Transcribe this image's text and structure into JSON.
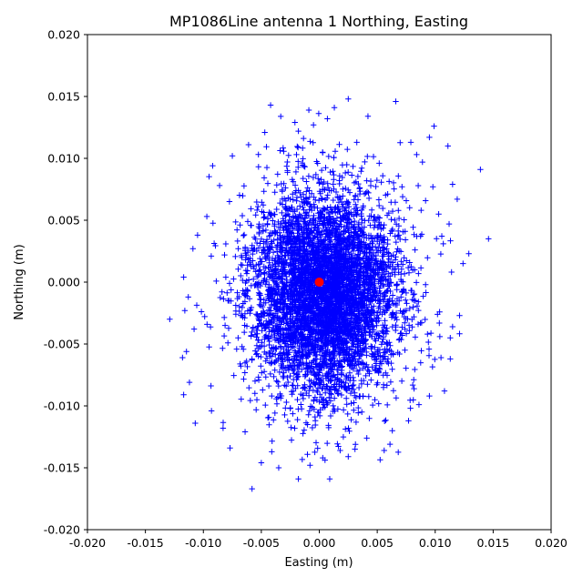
{
  "chart_data": {
    "type": "scatter",
    "title": "MP1086Line antenna 1 Northing, Easting",
    "xlabel": "Easting (m)",
    "ylabel": "Northing (m)",
    "xlim": [
      -0.02,
      0.02
    ],
    "ylim": [
      -0.02,
      0.02
    ],
    "xticks": [
      "-0.020",
      "-0.015",
      "-0.010",
      "-0.005",
      "0.000",
      "0.005",
      "0.010",
      "0.015",
      "0.020"
    ],
    "yticks": [
      "-0.020",
      "-0.015",
      "-0.010",
      "-0.005",
      "0.000",
      "0.005",
      "0.010",
      "0.015",
      "0.020"
    ],
    "grid": false,
    "series": [
      {
        "marker": "plus",
        "color": "#0000ff",
        "distribution": {
          "center": [
            0.0005,
            -0.001
          ],
          "std": [
            0.0032,
            0.0042
          ]
        },
        "points": [
          [
            0.0139,
            0.0091
          ],
          [
            0.0146,
            0.0035
          ],
          [
            0.0129,
            0.0023
          ],
          [
            0.0124,
            0.0015
          ],
          [
            0.0121,
            -0.0027
          ],
          [
            0.0111,
            0.011
          ],
          [
            0.0115,
            0.0079
          ],
          [
            0.0119,
            0.0067
          ],
          [
            0.0112,
            0.0047
          ],
          [
            0.0113,
            -0.0045
          ],
          [
            0.0108,
            -0.0088
          ],
          [
            0.0113,
            -0.0062
          ],
          [
            0.0099,
            0.0126
          ],
          [
            0.0095,
            0.0117
          ],
          [
            0.0084,
            0.0103
          ],
          [
            0.0066,
            0.0146
          ],
          [
            0.0042,
            0.0134
          ],
          [
            0.0025,
            0.0148
          ],
          [
            0.0013,
            0.0141
          ],
          [
            0.0007,
            0.0132
          ],
          [
            -0.0005,
            0.0127
          ],
          [
            -0.0009,
            0.0139
          ],
          [
            -0.0018,
            0.0122
          ],
          [
            -0.0021,
            0.0129
          ],
          [
            -0.0042,
            0.0143
          ],
          [
            -0.0047,
            0.0121
          ],
          [
            -0.0061,
            0.0111
          ],
          [
            -0.0075,
            0.0102
          ],
          [
            -0.0086,
            0.0078
          ],
          [
            -0.0092,
            0.0094
          ],
          [
            -0.0097,
            0.0053
          ],
          [
            -0.0105,
            0.0038
          ],
          [
            -0.0109,
            0.0027
          ],
          [
            -0.0117,
            0.0004
          ],
          [
            -0.0113,
            -0.0012
          ],
          [
            -0.0129,
            -0.003
          ],
          [
            -0.0116,
            -0.0023
          ],
          [
            -0.0108,
            -0.0038
          ],
          [
            -0.0118,
            -0.0061
          ],
          [
            -0.0112,
            -0.0081
          ],
          [
            -0.0117,
            -0.0091
          ],
          [
            -0.0107,
            -0.0114
          ],
          [
            -0.0093,
            -0.0104
          ],
          [
            -0.0083,
            -0.0118
          ],
          [
            -0.0077,
            -0.0134
          ],
          [
            -0.0064,
            -0.0121
          ],
          [
            -0.0058,
            -0.0167
          ],
          [
            -0.005,
            -0.0146
          ],
          [
            -0.0041,
            -0.0137
          ],
          [
            -0.0035,
            -0.015
          ],
          [
            -0.0018,
            -0.0159
          ],
          [
            -0.0008,
            -0.0148
          ],
          [
            0.0009,
            -0.0159
          ],
          [
            0.0003,
            -0.0142
          ],
          [
            0.0018,
            -0.0136
          ],
          [
            0.0025,
            -0.0141
          ],
          [
            0.0041,
            -0.0126
          ],
          [
            0.0056,
            -0.0136
          ],
          [
            0.0061,
            -0.0131
          ],
          [
            0.0063,
            -0.012
          ],
          [
            0.0077,
            -0.0112
          ],
          [
            0.0086,
            -0.0099
          ],
          [
            0.0095,
            -0.0092
          ],
          [
            0.0105,
            -0.0061
          ],
          [
            0.0104,
            -0.0044
          ],
          [
            0.0102,
            -0.0026
          ],
          [
            0.0115,
            -0.0036
          ],
          [
            0.0107,
            0.0031
          ],
          [
            0.0103,
            0.0055
          ],
          [
            0.0098,
            0.0077
          ],
          [
            0.0089,
            0.0097
          ],
          [
            0.0079,
            0.0113
          ]
        ]
      },
      {
        "marker": "circle",
        "color": "#ff0000",
        "points": [
          [
            0.0,
            0.0
          ]
        ]
      }
    ]
  }
}
